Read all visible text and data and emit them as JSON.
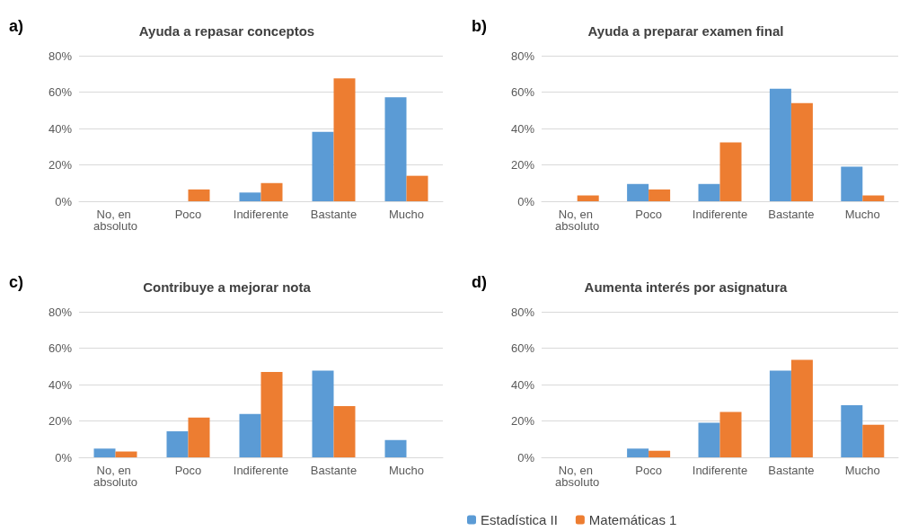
{
  "chart_data": [
    {
      "type": "bar",
      "title": "Ayuda a repasar conceptos",
      "annotations": [
        "a)"
      ],
      "categories": [
        "No, en absoluto",
        "Poco",
        "Indiferente",
        "Bastante",
        "Mucho"
      ],
      "series": [
        {
          "color": "#5b9bd5",
          "values": [
            0,
            0,
            4.8,
            38.1,
            57.1
          ]
        },
        {
          "color": "#ed7d31",
          "values": [
            0,
            6.5,
            10,
            67.5,
            14
          ]
        }
      ],
      "ylim": [
        0,
        80
      ],
      "yticks": [
        {
          "value": 0,
          "label": "0%"
        },
        {
          "value": 20,
          "label": "20%"
        },
        {
          "value": 40,
          "label": "40%"
        },
        {
          "value": 60,
          "label": "60%"
        },
        {
          "value": 80,
          "label": "80%"
        }
      ],
      "grid": "y",
      "legend": false
    },
    {
      "type": "bar",
      "title": "Ayuda a preparar examen final",
      "annotations": [
        "b)"
      ],
      "categories": [
        "No, en absoluto",
        "Poco",
        "Indiferente",
        "Bastante",
        "Mucho"
      ],
      "series": [
        {
          "color": "#5b9bd5",
          "values": [
            0,
            9.5,
            9.5,
            61.9,
            19
          ]
        },
        {
          "color": "#ed7d31",
          "values": [
            3.2,
            6.5,
            32.3,
            54,
            3.2
          ]
        }
      ],
      "ylim": [
        0,
        80
      ],
      "yticks": [
        {
          "value": 0,
          "label": "0%"
        },
        {
          "value": 20,
          "label": "20%"
        },
        {
          "value": 40,
          "label": "40%"
        },
        {
          "value": 60,
          "label": "60%"
        },
        {
          "value": 80,
          "label": "80%"
        }
      ],
      "grid": "y",
      "legend": false
    },
    {
      "type": "bar",
      "title": "Contribuye a mejorar nota",
      "annotations": [
        "c)"
      ],
      "categories": [
        "No, en absoluto",
        "Poco",
        "Indiferente",
        "Bastante",
        "Mucho"
      ],
      "series": [
        {
          "color": "#5b9bd5",
          "values": [
            4.8,
            14.3,
            23.8,
            47.6,
            9.5
          ]
        },
        {
          "color": "#ed7d31",
          "values": [
            3.2,
            21.9,
            46.9,
            28.1,
            0
          ]
        }
      ],
      "ylim": [
        0,
        80
      ],
      "yticks": [
        {
          "value": 0,
          "label": "0%"
        },
        {
          "value": 20,
          "label": "20%"
        },
        {
          "value": 40,
          "label": "40%"
        },
        {
          "value": 60,
          "label": "60%"
        },
        {
          "value": 80,
          "label": "80%"
        }
      ],
      "grid": "y",
      "legend": false
    },
    {
      "type": "bar",
      "title": "Aumenta interés por asignatura",
      "annotations": [
        "d)"
      ],
      "categories": [
        "No, en absoluto",
        "Poco",
        "Indiferente",
        "Bastante",
        "Mucho"
      ],
      "series": [
        {
          "name": "Estadística II",
          "color": "#5b9bd5",
          "values": [
            0,
            4.8,
            19,
            47.6,
            28.6
          ]
        },
        {
          "name": "Matemáticas 1",
          "color": "#ed7d31",
          "values": [
            0,
            3.6,
            25,
            53.6,
            17.9
          ]
        }
      ],
      "ylim": [
        0,
        80
      ],
      "yticks": [
        {
          "value": 0,
          "label": "0%"
        },
        {
          "value": 20,
          "label": "20%"
        },
        {
          "value": 40,
          "label": "40%"
        },
        {
          "value": 60,
          "label": "60%"
        },
        {
          "value": 80,
          "label": "80%"
        }
      ],
      "grid": "y",
      "legend": "bottom"
    }
  ]
}
